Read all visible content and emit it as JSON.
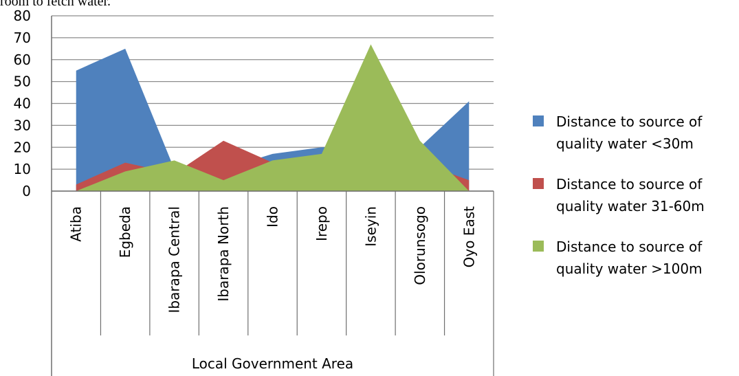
{
  "page": {
    "top_text": "room to fetch water."
  },
  "chart_data": {
    "type": "area",
    "xlabel": "Local Government Area",
    "ylabel": "",
    "ylim": [
      0,
      80
    ],
    "yticks": [
      "0",
      "10",
      "20",
      "30",
      "40",
      "50",
      "60",
      "70",
      "80"
    ],
    "grid": true,
    "legend_position": "right",
    "categories": [
      "Atiba",
      "Egbeda",
      "Ibarapa Central",
      "Ibarapa North",
      "Ido",
      "Irepo",
      "Iseyin",
      "Olorunsogo",
      "Oyo East"
    ],
    "series": [
      {
        "name": "Distance to source of quality water <30m",
        "legend_lines": [
          "Distance to source of",
          "quality water <30m"
        ],
        "color": "#4F81BD",
        "values": [
          55,
          65,
          10,
          10,
          17,
          20,
          20,
          20,
          41
        ]
      },
      {
        "name": "Distance to source of quality water 31-60m",
        "legend_lines": [
          "Distance to source of",
          "quality water 31-60m"
        ],
        "color": "#C0504D",
        "values": [
          3,
          13,
          8,
          23,
          13,
          13,
          13,
          13,
          5
        ]
      },
      {
        "name": "Distance to source of quality water >100m",
        "legend_lines": [
          "Distance to source of",
          "quality water >100m"
        ],
        "color": "#9BBB59",
        "values": [
          0,
          9,
          14,
          5,
          14,
          17,
          67,
          23,
          0
        ]
      }
    ]
  }
}
